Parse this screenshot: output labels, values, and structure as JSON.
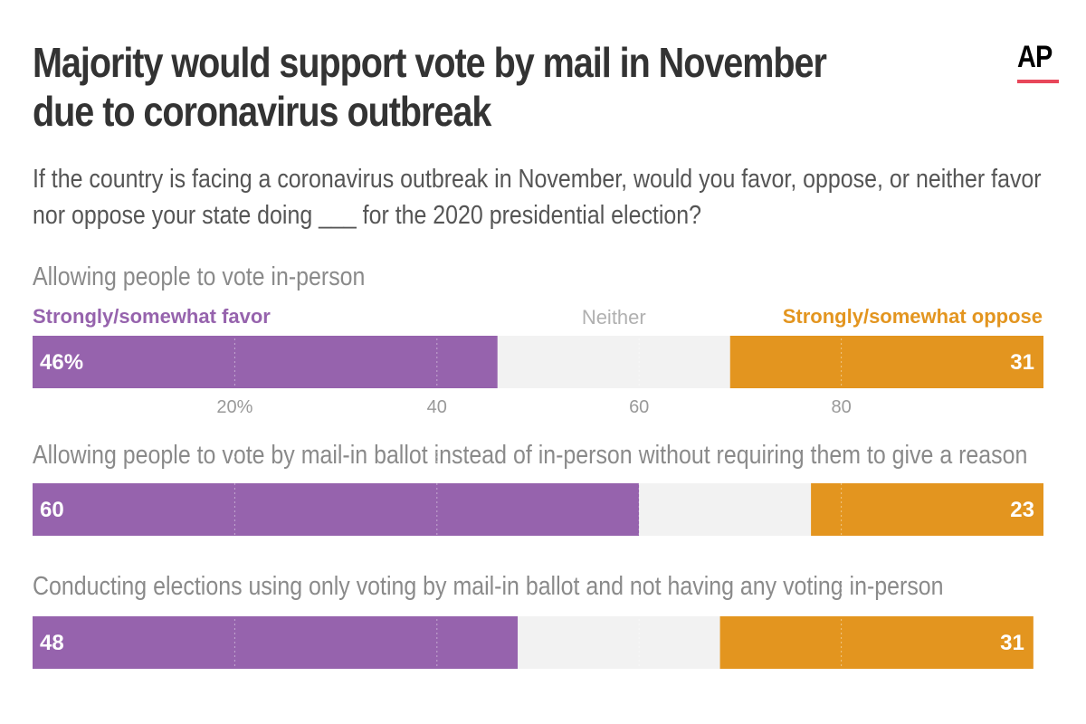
{
  "title": "Majority would support vote by mail in November due to coronavirus outbreak",
  "subtitle": "If the country is facing a coronavirus outbreak in November, would you favor, oppose, or neither favor nor oppose your state doing ___ for the 2020 presidential election?",
  "logo": "AP",
  "colors": {
    "favor": "#9663ad",
    "neither": "#f2f2f2",
    "oppose": "#e3951f",
    "logo_bar": "#e8475a"
  },
  "chart_data": {
    "type": "bar",
    "orientation": "horizontal-stacked",
    "categories": [
      "Allowing people to vote in-person",
      "Allowing people to vote by mail-in ballot instead of in-person without requiring them to give a reason",
      "Conducting elections using only voting by mail-in ballot and not having any voting in-person"
    ],
    "series": [
      {
        "name": "Strongly/somewhat favor",
        "values": [
          46,
          60,
          48
        ]
      },
      {
        "name": "Neither",
        "values": [
          23,
          17,
          20
        ]
      },
      {
        "name": "Strongly/somewhat oppose",
        "values": [
          31,
          23,
          31
        ]
      }
    ],
    "data_labels": {
      "favor": [
        "46%",
        "60",
        "48"
      ],
      "oppose": [
        "31",
        "23",
        "31"
      ]
    },
    "xlim": [
      0,
      100
    ],
    "xticks": [
      20,
      40,
      60,
      80
    ],
    "xtick_labels": [
      "20%",
      "40",
      "60",
      "80"
    ],
    "grid": true,
    "legend_placement": "top"
  }
}
